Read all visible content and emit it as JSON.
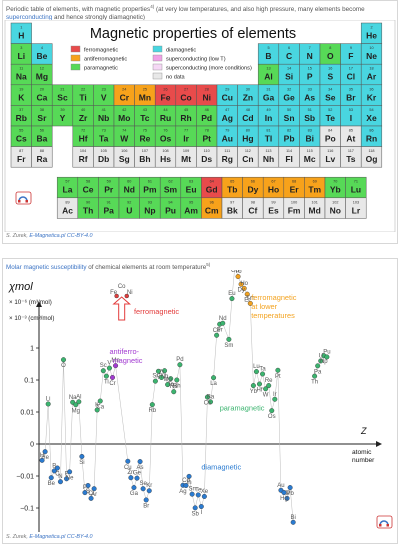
{
  "top": {
    "caption_pre": "Periodic table of elements, with magnetic properties",
    "caption_sup": "4)",
    "caption_mid": " (at very low temperatures, and also high pressure, many elements become ",
    "caption_link": "superconducting",
    "caption_post": " and hence strongly diamagnetic)",
    "title": "Magnetic properties of elements",
    "legend": [
      {
        "label": "ferromagnetic",
        "color": "#e84b4b"
      },
      {
        "label": "superconducting (low T)",
        "color": "#f0a0e6"
      },
      {
        "label": "antiferromagnetic",
        "color": "#f7a21b"
      },
      {
        "label": "superconducting (more conditions)",
        "color": "#f5d8f5"
      },
      {
        "label": "paramagnetic",
        "color": "#57d957"
      },
      {
        "label": "no data",
        "color": "#e8e8e8"
      },
      {
        "label": "diamagnetic",
        "color": "#49d6e0"
      }
    ],
    "credit_prefix": "S. Zurek, ",
    "credit_site": "E-Magnetica.pl",
    "credit_license": "CC-BY-4.0"
  },
  "pt_colors": {
    "F": "#e84b4b",
    "A": "#f7a21b",
    "P": "#57d957",
    "D": "#49d6e0",
    "N": "#e8e8e8",
    "S": "#f0a0e6"
  },
  "elements": [
    [
      "H",
      1,
      1,
      "D"
    ],
    [
      "He",
      2,
      18,
      "D"
    ],
    [
      "Li",
      3,
      1,
      "P"
    ],
    [
      "Be",
      4,
      2,
      "D"
    ],
    [
      "B",
      5,
      13,
      "D"
    ],
    [
      "C",
      6,
      14,
      "D"
    ],
    [
      "N",
      7,
      15,
      "D"
    ],
    [
      "O",
      8,
      16,
      "P"
    ],
    [
      "F",
      9,
      17,
      "D"
    ],
    [
      "Ne",
      10,
      18,
      "D"
    ],
    [
      "Na",
      11,
      1,
      "P"
    ],
    [
      "Mg",
      12,
      2,
      "P"
    ],
    [
      "Al",
      13,
      13,
      "P"
    ],
    [
      "Si",
      14,
      14,
      "D"
    ],
    [
      "P",
      15,
      15,
      "D"
    ],
    [
      "S",
      16,
      16,
      "D"
    ],
    [
      "Cl",
      17,
      17,
      "D"
    ],
    [
      "Ar",
      18,
      18,
      "D"
    ],
    [
      "K",
      19,
      1,
      "P"
    ],
    [
      "Ca",
      20,
      2,
      "P"
    ],
    [
      "Sc",
      21,
      3,
      "P"
    ],
    [
      "Ti",
      22,
      4,
      "P"
    ],
    [
      "V",
      23,
      5,
      "P"
    ],
    [
      "Cr",
      24,
      6,
      "A"
    ],
    [
      "Mn",
      25,
      7,
      "A"
    ],
    [
      "Fe",
      26,
      8,
      "F"
    ],
    [
      "Co",
      27,
      9,
      "F"
    ],
    [
      "Ni",
      28,
      10,
      "F"
    ],
    [
      "Cu",
      29,
      11,
      "D"
    ],
    [
      "Zn",
      30,
      12,
      "D"
    ],
    [
      "Ga",
      31,
      13,
      "D"
    ],
    [
      "Ge",
      32,
      14,
      "D"
    ],
    [
      "As",
      33,
      15,
      "D"
    ],
    [
      "Se",
      34,
      16,
      "D"
    ],
    [
      "Br",
      35,
      17,
      "D"
    ],
    [
      "Kr",
      36,
      18,
      "D"
    ],
    [
      "Rb",
      37,
      1,
      "P"
    ],
    [
      "Sr",
      38,
      2,
      "P"
    ],
    [
      "Y",
      39,
      3,
      "P"
    ],
    [
      "Zr",
      40,
      4,
      "P"
    ],
    [
      "Nb",
      41,
      5,
      "P"
    ],
    [
      "Mo",
      42,
      6,
      "P"
    ],
    [
      "Tc",
      43,
      7,
      "P"
    ],
    [
      "Ru",
      44,
      8,
      "P"
    ],
    [
      "Rh",
      45,
      9,
      "P"
    ],
    [
      "Pd",
      46,
      10,
      "P"
    ],
    [
      "Ag",
      47,
      11,
      "D"
    ],
    [
      "Cd",
      48,
      12,
      "D"
    ],
    [
      "In",
      49,
      13,
      "D"
    ],
    [
      "Sn",
      50,
      14,
      "D"
    ],
    [
      "Sb",
      51,
      15,
      "D"
    ],
    [
      "Te",
      52,
      16,
      "D"
    ],
    [
      "I",
      53,
      17,
      "D"
    ],
    [
      "Xe",
      54,
      18,
      "D"
    ],
    [
      "Cs",
      55,
      1,
      "P"
    ],
    [
      "Ba",
      56,
      2,
      "P"
    ],
    [
      "Hf",
      72,
      4,
      "P"
    ],
    [
      "Ta",
      73,
      5,
      "P"
    ],
    [
      "W",
      74,
      6,
      "P"
    ],
    [
      "Re",
      75,
      7,
      "P"
    ],
    [
      "Os",
      76,
      8,
      "P"
    ],
    [
      "Ir",
      77,
      9,
      "P"
    ],
    [
      "Pt",
      78,
      10,
      "P"
    ],
    [
      "Au",
      79,
      11,
      "D"
    ],
    [
      "Hg",
      80,
      12,
      "D"
    ],
    [
      "Tl",
      81,
      13,
      "D"
    ],
    [
      "Pb",
      82,
      14,
      "D"
    ],
    [
      "Bi",
      83,
      15,
      "D"
    ],
    [
      "Po",
      84,
      16,
      "N"
    ],
    [
      "At",
      85,
      17,
      "N"
    ],
    [
      "Rn",
      86,
      18,
      "D"
    ],
    [
      "Fr",
      87,
      1,
      "N"
    ],
    [
      "Ra",
      88,
      2,
      "N"
    ],
    [
      "Rf",
      104,
      4,
      "N"
    ],
    [
      "Db",
      105,
      5,
      "N"
    ],
    [
      "Sg",
      106,
      6,
      "N"
    ],
    [
      "Bh",
      107,
      7,
      "N"
    ],
    [
      "Hs",
      108,
      8,
      "N"
    ],
    [
      "Mt",
      109,
      9,
      "N"
    ],
    [
      "Ds",
      110,
      10,
      "N"
    ],
    [
      "Rg",
      111,
      11,
      "N"
    ],
    [
      "Cn",
      112,
      12,
      "N"
    ],
    [
      "Nh",
      113,
      13,
      "N"
    ],
    [
      "Fl",
      114,
      14,
      "N"
    ],
    [
      "Mc",
      115,
      15,
      "N"
    ],
    [
      "Lv",
      116,
      16,
      "N"
    ],
    [
      "Ts",
      117,
      17,
      "N"
    ],
    [
      "Og",
      118,
      18,
      "N"
    ]
  ],
  "lanthanides": [
    [
      "La",
      57,
      "P"
    ],
    [
      "Ce",
      58,
      "P"
    ],
    [
      "Pr",
      59,
      "P"
    ],
    [
      "Nd",
      60,
      "P"
    ],
    [
      "Pm",
      61,
      "P"
    ],
    [
      "Sm",
      62,
      "P"
    ],
    [
      "Eu",
      63,
      "P"
    ],
    [
      "Gd",
      64,
      "F"
    ],
    [
      "Tb",
      65,
      "A"
    ],
    [
      "Dy",
      66,
      "A"
    ],
    [
      "Ho",
      67,
      "A"
    ],
    [
      "Er",
      68,
      "A"
    ],
    [
      "Tm",
      69,
      "A"
    ],
    [
      "Yb",
      70,
      "P"
    ],
    [
      "Lu",
      71,
      "P"
    ]
  ],
  "actinides": [
    [
      "Ac",
      89,
      "N"
    ],
    [
      "Th",
      90,
      "P"
    ],
    [
      "Pa",
      91,
      "P"
    ],
    [
      "U",
      92,
      "P"
    ],
    [
      "Np",
      93,
      "P"
    ],
    [
      "Pu",
      94,
      "P"
    ],
    [
      "Am",
      95,
      "P"
    ],
    [
      "Cm",
      96,
      "A"
    ],
    [
      "Bk",
      97,
      "N"
    ],
    [
      "Cf",
      98,
      "N"
    ],
    [
      "Es",
      99,
      "N"
    ],
    [
      "Fm",
      100,
      "N"
    ],
    [
      "Md",
      101,
      "N"
    ],
    [
      "No",
      102,
      "N"
    ],
    [
      "Lr",
      103,
      "N"
    ]
  ],
  "bottom": {
    "caption_link": "Molar magnetic susceptibility",
    "caption_rest": " of chemical elements at room temperature",
    "caption_sup": "5)",
    "credit_prefix": "S. Zurek, ",
    "credit_site": "E-Magnetica.pl",
    "credit_license": "CC-BY-4.0"
  },
  "chart_data": {
    "type": "scatter",
    "y_scale": "symlog",
    "ylabel": "χmol",
    "y_unit_1": "× 10⁻⁶ (m³/mol)",
    "y_unit_2": "× 10⁻³ (cm³/mol)",
    "xlabel": "Z atomic number",
    "y_ticks": [
      "1",
      "0.1",
      "0.01",
      "0",
      "−0.01",
      "−0.1",
      "−1"
    ],
    "annotations": {
      "ferromagnetic": "ferromagnetic",
      "antiferromagnetic": "antiferro-magnetic",
      "paramagnetic": "paramagnetic",
      "diamagnetic": "diamagnetic",
      "ferro_lower_temp": "ferromagnetic at lower temperatures"
    },
    "colors": {
      "green": "#3bb46f",
      "purple": "#a23bd1",
      "orange": "#f3a320",
      "red": "#e33c3c",
      "blue": "#2a7bd1"
    },
    "points": [
      {
        "el": "H",
        "z": 1,
        "v": -0.0051,
        "c": "blue"
      },
      {
        "el": "He",
        "z": 2,
        "v": -0.0024,
        "c": "blue"
      },
      {
        "el": "Li",
        "z": 3,
        "v": 0.0178,
        "c": "green"
      },
      {
        "el": "Be",
        "z": 4,
        "v": -0.0113,
        "c": "blue"
      },
      {
        "el": "B",
        "z": 5,
        "v": -0.0084,
        "c": "blue"
      },
      {
        "el": "C",
        "z": 6,
        "v": -0.0075,
        "c": "blue"
      },
      {
        "el": "N",
        "z": 7,
        "v": -0.0151,
        "c": "blue"
      },
      {
        "el": "O",
        "z": 8,
        "v": 0.43,
        "c": "green"
      },
      {
        "el": "F",
        "z": 9,
        "v": -0.0122,
        "c": "blue"
      },
      {
        "el": "Ne",
        "z": 10,
        "v": -0.0087,
        "c": "blue"
      },
      {
        "el": "Na",
        "z": 11,
        "v": 0.0201,
        "c": "green"
      },
      {
        "el": "Mg",
        "z": 12,
        "v": 0.0168,
        "c": "green"
      },
      {
        "el": "Al",
        "z": 13,
        "v": 0.0209,
        "c": "green"
      },
      {
        "el": "Si",
        "z": 14,
        "v": -0.0039,
        "c": "blue"
      },
      {
        "el": "P",
        "z": 15,
        "v": -0.033,
        "c": "blue"
      },
      {
        "el": "S",
        "z": 16,
        "v": -0.0198,
        "c": "blue"
      },
      {
        "el": "Cl",
        "z": 17,
        "v": -0.05,
        "c": "blue"
      },
      {
        "el": "Ar",
        "z": 18,
        "v": -0.025,
        "c": "blue"
      },
      {
        "el": "K",
        "z": 19,
        "v": 0.0116,
        "c": "green"
      },
      {
        "el": "Ca",
        "z": 20,
        "v": 0.022,
        "c": "green"
      },
      {
        "el": "Sc",
        "z": 21,
        "v": 0.195,
        "c": "green"
      },
      {
        "el": "Ti",
        "z": 22,
        "v": 0.132,
        "c": "green"
      },
      {
        "el": "V",
        "z": 23,
        "v": 0.236,
        "c": "green"
      },
      {
        "el": "Cr",
        "z": 24,
        "v": 0.12,
        "c": "purple"
      },
      {
        "el": "Mn",
        "z": 25,
        "v": 0.281,
        "c": "purple"
      },
      {
        "el": "Cu",
        "z": 29,
        "v": -0.0054,
        "c": "blue"
      },
      {
        "el": "Zn",
        "z": 30,
        "v": -0.0113,
        "c": "blue"
      },
      {
        "el": "Ga",
        "z": 31,
        "v": -0.023,
        "c": "blue"
      },
      {
        "el": "Ge",
        "z": 32,
        "v": -0.0117,
        "c": "blue"
      },
      {
        "el": "As",
        "z": 33,
        "v": -0.0055,
        "c": "blue"
      },
      {
        "el": "Se",
        "z": 34,
        "v": -0.025,
        "c": "blue"
      },
      {
        "el": "Br",
        "z": 35,
        "v": -0.056,
        "c": "blue"
      },
      {
        "el": "Kr",
        "z": 36,
        "v": -0.0289,
        "c": "blue"
      },
      {
        "el": "Rb",
        "z": 37,
        "v": 0.017,
        "c": "green"
      },
      {
        "el": "Sr",
        "z": 38,
        "v": 0.092,
        "c": "green"
      },
      {
        "el": "Y",
        "z": 39,
        "v": 0.187,
        "c": "green"
      },
      {
        "el": "Zr",
        "z": 40,
        "v": 0.12,
        "c": "green"
      },
      {
        "el": "Nb",
        "z": 41,
        "v": 0.195,
        "c": "green"
      },
      {
        "el": "Mo",
        "z": 42,
        "v": 0.072,
        "c": "green"
      },
      {
        "el": "Tc",
        "z": 43,
        "v": 0.11,
        "c": "green"
      },
      {
        "el": "Ru",
        "z": 44,
        "v": 0.043,
        "c": "green"
      },
      {
        "el": "Rh",
        "z": 45,
        "v": 0.1,
        "c": "green"
      },
      {
        "el": "Pd",
        "z": 46,
        "v": 0.3,
        "c": "green"
      },
      {
        "el": "Ag",
        "z": 47,
        "v": -0.0195,
        "c": "blue"
      },
      {
        "el": "Cd",
        "z": 48,
        "v": -0.0198,
        "c": "blue"
      },
      {
        "el": "In",
        "z": 49,
        "v": -0.0103,
        "c": "blue"
      },
      {
        "el": "Sn",
        "z": 50,
        "v": -0.037,
        "c": "blue"
      },
      {
        "el": "Sb",
        "z": 51,
        "v": -0.099,
        "c": "blue"
      },
      {
        "el": "Te",
        "z": 52,
        "v": -0.039,
        "c": "blue"
      },
      {
        "el": "I",
        "z": 53,
        "v": -0.09,
        "c": "blue"
      },
      {
        "el": "Xe",
        "z": 54,
        "v": -0.0436,
        "c": "blue"
      },
      {
        "el": "Cs",
        "z": 55,
        "v": 0.0292,
        "c": "green"
      },
      {
        "el": "Ba",
        "z": 56,
        "v": 0.0207,
        "c": "green"
      },
      {
        "el": "La",
        "z": 57,
        "v": 0.118,
        "c": "green"
      },
      {
        "el": "Ce",
        "z": 58,
        "v": 2.5,
        "c": "green"
      },
      {
        "el": "Pr",
        "z": 59,
        "v": 5.53,
        "c": "green"
      },
      {
        "el": "Nd",
        "z": 60,
        "v": 5.93,
        "c": "green"
      },
      {
        "el": "Sm",
        "z": 62,
        "v": 1.86,
        "c": "green"
      },
      {
        "el": "Eu",
        "z": 63,
        "v": 35.0,
        "c": "green"
      },
      {
        "el": "Gd",
        "z": 64,
        "v": 400,
        "c": "orange"
      },
      {
        "el": "Tb",
        "z": 65,
        "v": 171,
        "c": "orange"
      },
      {
        "el": "Dy",
        "z": 66,
        "v": 98.4,
        "c": "orange"
      },
      {
        "el": "Ho",
        "z": 67,
        "v": 72.9,
        "c": "orange"
      },
      {
        "el": "Er",
        "z": 68,
        "v": 48.0,
        "c": "orange"
      },
      {
        "el": "Tm",
        "z": 69,
        "v": 24.7,
        "c": "orange"
      },
      {
        "el": "Yb",
        "z": 70,
        "v": 0.067,
        "c": "green"
      },
      {
        "el": "Lu",
        "z": 71,
        "v": 0.183,
        "c": "green"
      },
      {
        "el": "Hf",
        "z": 72,
        "v": 0.075,
        "c": "green"
      },
      {
        "el": "Ta",
        "z": 73,
        "v": 0.154,
        "c": "green"
      },
      {
        "el": "W",
        "z": 74,
        "v": 0.053,
        "c": "green"
      },
      {
        "el": "Re",
        "z": 75,
        "v": 0.067,
        "c": "green"
      },
      {
        "el": "Os",
        "z": 76,
        "v": 0.011,
        "c": "green"
      },
      {
        "el": "Ir",
        "z": 77,
        "v": 0.025,
        "c": "green"
      },
      {
        "el": "Pt",
        "z": 78,
        "v": 0.201,
        "c": "green"
      },
      {
        "el": "Au",
        "z": 79,
        "v": -0.028,
        "c": "blue"
      },
      {
        "el": "Hg",
        "z": 80,
        "v": -0.033,
        "c": "blue"
      },
      {
        "el": "Tl",
        "z": 81,
        "v": -0.05,
        "c": "blue"
      },
      {
        "el": "Pb",
        "z": 82,
        "v": -0.023,
        "c": "blue"
      },
      {
        "el": "Bi",
        "z": 83,
        "v": -0.28,
        "c": "blue"
      },
      {
        "el": "Th",
        "z": 90,
        "v": 0.132,
        "c": "green"
      },
      {
        "el": "U",
        "z": 92,
        "v": 0.395,
        "c": "green"
      },
      {
        "el": "Np",
        "z": 93,
        "v": 0.575,
        "c": "green"
      },
      {
        "el": "Pu",
        "z": 94,
        "v": 0.525,
        "c": "green"
      },
      {
        "el": "Pa",
        "z": 91,
        "v": 0.277,
        "c": "green"
      }
    ],
    "ferro_labels": [
      "Fe",
      "Co",
      "Ni"
    ]
  }
}
